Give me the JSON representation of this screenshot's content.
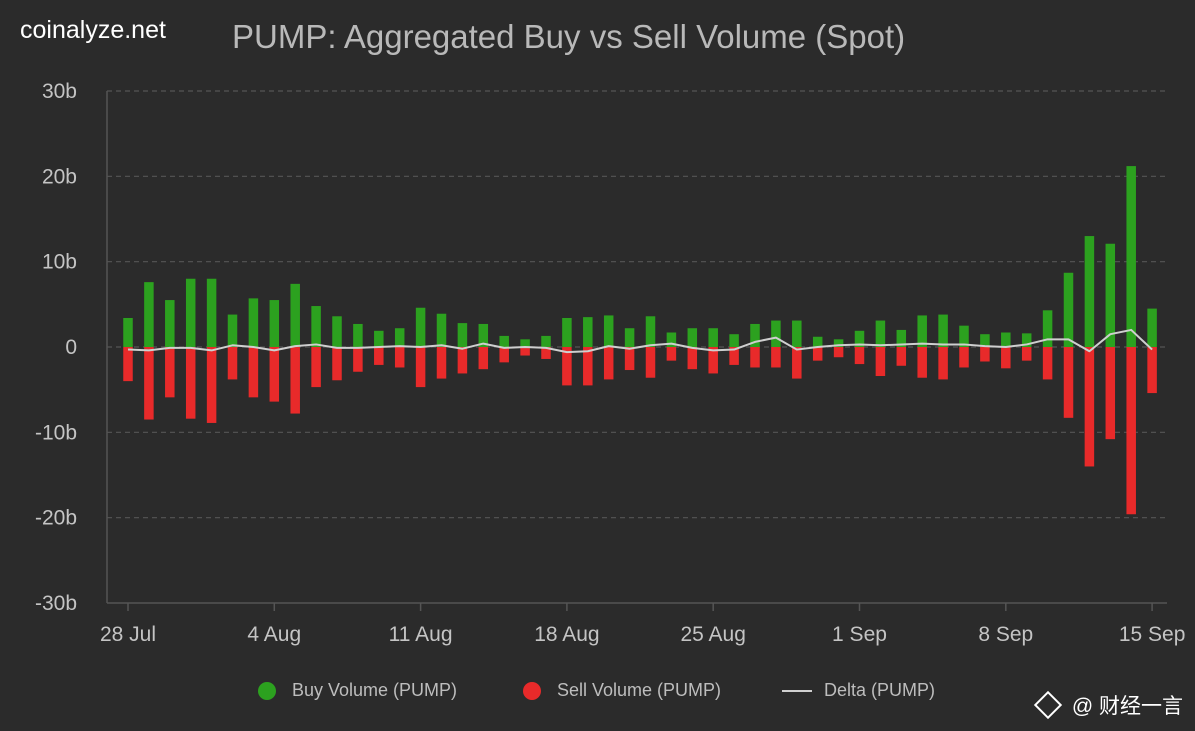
{
  "brand": "coinalyze.net",
  "watermark": "@ 财经一言",
  "colors": {
    "background": "#2b2b2b",
    "buy": "#2ca11f",
    "sell": "#e82a2a",
    "delta": "#cfcfcf",
    "grid": "#555555",
    "axis_text": "#c4c4c4"
  },
  "chart_data": {
    "type": "bar",
    "title": "PUMP: Aggregated Buy vs Sell Volume (Spot)",
    "ylim": [
      -30,
      30
    ],
    "yticks": [
      "30b",
      "20b",
      "10b",
      "0",
      "-10b",
      "-20b",
      "-30b"
    ],
    "xticks": [
      "28 Jul",
      "4 Aug",
      "11 Aug",
      "18 Aug",
      "25 Aug",
      "1 Sep",
      "8 Sep",
      "15 Sep"
    ],
    "grid": true,
    "legend_position": "bottom",
    "series": [
      {
        "name": "Buy Volume (PUMP)",
        "type": "bar",
        "values": [
          3.4,
          7.6,
          5.5,
          8.0,
          8.0,
          3.8,
          5.7,
          5.5,
          7.4,
          4.8,
          3.6,
          2.7,
          1.9,
          2.2,
          4.6,
          3.9,
          2.8,
          2.7,
          1.3,
          0.9,
          1.3,
          3.4,
          3.5,
          3.7,
          2.2,
          3.6,
          1.7,
          2.2,
          2.2,
          1.5,
          2.7,
          3.1,
          3.1,
          1.2,
          0.9,
          1.9,
          3.1,
          2.0,
          3.7,
          3.8,
          2.5,
          1.5,
          1.7,
          1.6,
          4.3,
          8.7,
          13.0,
          12.1,
          21.2,
          4.5
        ]
      },
      {
        "name": "Sell Volume (PUMP)",
        "type": "bar",
        "values": [
          -4.0,
          -8.5,
          -5.9,
          -8.4,
          -8.9,
          -3.8,
          -5.9,
          -6.4,
          -7.8,
          -4.7,
          -3.9,
          -2.9,
          -2.1,
          -2.4,
          -4.7,
          -3.7,
          -3.1,
          -2.6,
          -1.8,
          -1.0,
          -1.4,
          -4.5,
          -4.5,
          -3.8,
          -2.7,
          -3.6,
          -1.6,
          -2.6,
          -3.1,
          -2.1,
          -2.4,
          -2.4,
          -3.7,
          -1.6,
          -1.2,
          -2.0,
          -3.4,
          -2.2,
          -3.6,
          -3.8,
          -2.4,
          -1.7,
          -2.5,
          -1.6,
          -3.8,
          -8.3,
          -14.0,
          -10.8,
          -19.6,
          -5.4
        ]
      },
      {
        "name": "Delta (PUMP)",
        "type": "line",
        "values": [
          -0.3,
          -0.4,
          -0.1,
          -0.1,
          -0.4,
          0.2,
          0.0,
          -0.4,
          0.1,
          0.3,
          -0.1,
          -0.1,
          0.0,
          0.1,
          0.0,
          0.2,
          -0.2,
          0.4,
          -0.1,
          0.0,
          -0.1,
          -0.6,
          -0.5,
          0.1,
          -0.2,
          0.2,
          0.4,
          -0.1,
          -0.4,
          -0.3,
          0.6,
          1.1,
          -0.3,
          0.0,
          0.2,
          0.3,
          0.2,
          0.3,
          0.4,
          0.3,
          0.3,
          0.1,
          0.0,
          0.3,
          0.9,
          0.9,
          -0.5,
          1.5,
          2.0,
          -0.3
        ]
      }
    ]
  }
}
